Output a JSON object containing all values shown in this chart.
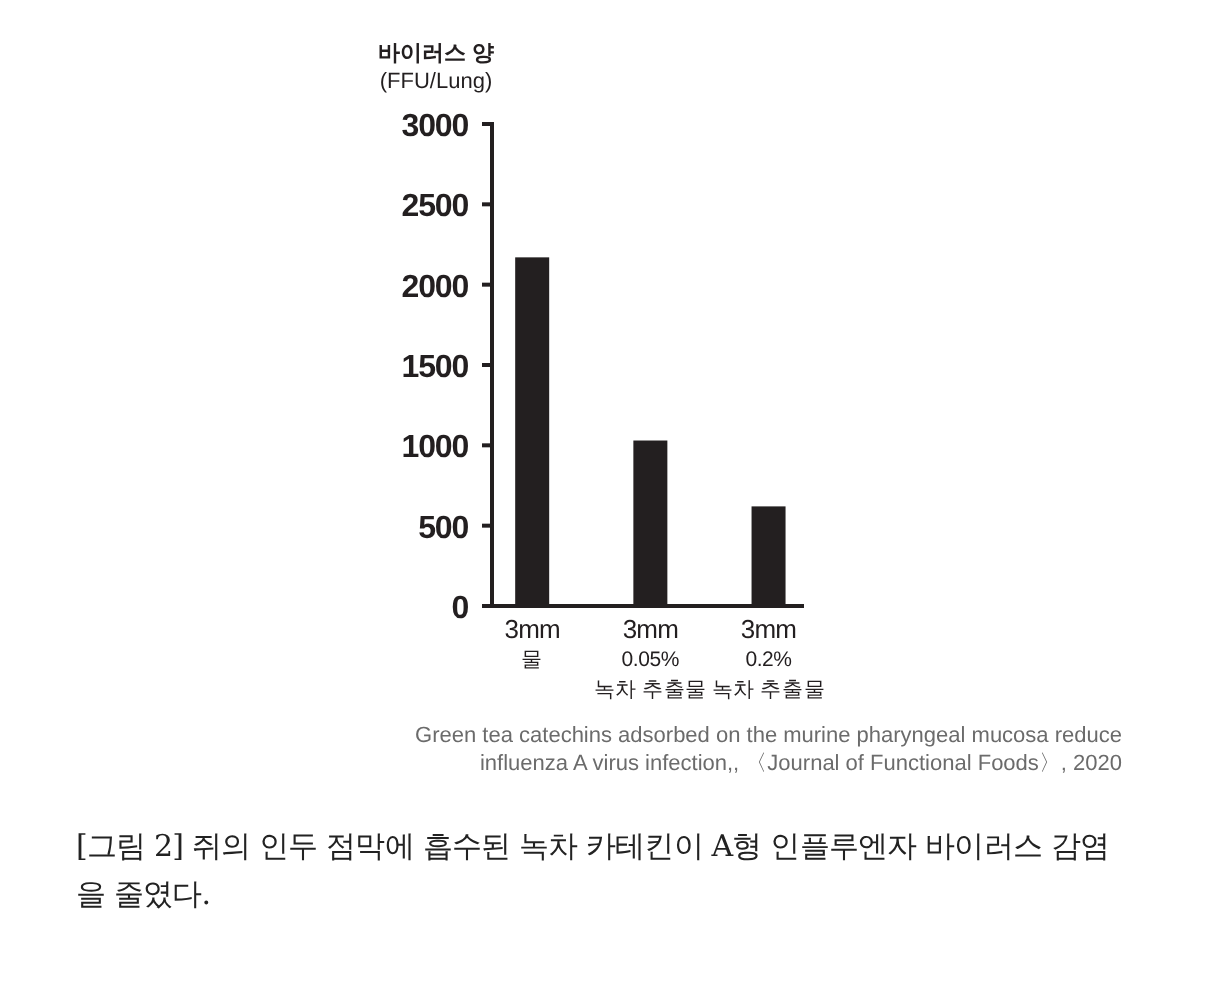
{
  "chart_data": {
    "type": "bar",
    "ylabel": "바이러스 양\n(FFU/Lung)",
    "categories": [
      "3mm\n물",
      "3mm\n0.05%\n녹차 추출물",
      "3mm\n0.2%\n녹차 추출물"
    ],
    "values": [
      2170,
      1030,
      620
    ],
    "color": "#231f20",
    "ylim": [
      0,
      3000
    ],
    "yticks": [
      0,
      500,
      1000,
      1500,
      2000,
      2500,
      3000
    ],
    "annotations": [
      "Green tea catechins adsorbed on the murine pharyngeal mucosa reduce\ninfluenza A virus infection,, 〈Journal of Functional Foods〉, 2020",
      "[그림 2] 쥐의 인두 점막에 흡수된 녹차 카테킨이 A형 인플루엔자 바이러스 감염을 줄였다."
    ]
  }
}
